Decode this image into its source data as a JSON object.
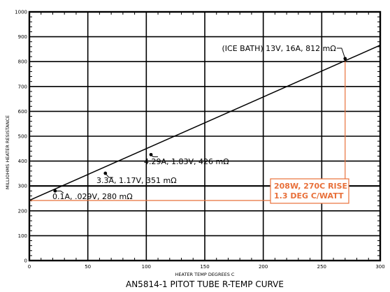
{
  "chart_data": {
    "type": "line",
    "title": "AN5814-1 PITOT TUBE R-TEMP CURVE",
    "xlabel": "HEATER TEMP DEGREES C",
    "ylabel": "MILLIOHMS HEATER RESISTANCE",
    "xlim": [
      0,
      300
    ],
    "ylim": [
      0,
      1000
    ],
    "x_ticks": [
      "0",
      "50",
      "100",
      "150",
      "200",
      "250",
      "300"
    ],
    "y_ticks": [
      "0",
      "100",
      "200",
      "300",
      "400",
      "500",
      "600",
      "700",
      "800",
      "900",
      "1000"
    ],
    "grid": true,
    "line": {
      "x": [
        0,
        300
      ],
      "y": [
        242,
        866
      ]
    },
    "reference_line_y": 300,
    "series": [
      {
        "values": [
          {
            "x": 22,
            "y": 280,
            "label": "0.1A, .029V, 280 mΩ"
          },
          {
            "x": 65,
            "y": 351,
            "label": "3.3A, 1.17V, 351 mΩ"
          },
          {
            "x": 104,
            "y": 426,
            "label": "4.29A, 1.83V, 426 mΩ"
          },
          {
            "x": 270,
            "y": 812,
            "label": "(ICE BATH) 13V, 16A, 812 mΩ"
          }
        ]
      }
    ],
    "annotations": [
      {
        "text": "208W, 270C RISE",
        "color": "#e8703a"
      },
      {
        "text": "1.3 DEG C/WATT",
        "color": "#e8703a"
      }
    ],
    "colors": {
      "line": "#000000",
      "highlight": "#e8703a"
    }
  }
}
